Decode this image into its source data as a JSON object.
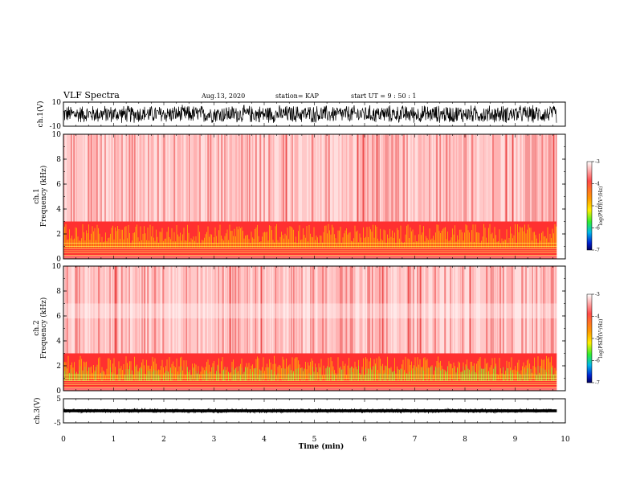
{
  "header": {
    "title": "VLF Spectra",
    "date": "Aug.13, 2020",
    "station": "station= KAP",
    "start": "start  UT  =   9  : 50 : 1"
  },
  "chart_data": [
    {
      "type": "line",
      "panel": "ch1-waveform",
      "ylabel": "ch.1(V)",
      "ylim": [
        -10,
        10
      ],
      "ytick_labels": [
        "10",
        "-10"
      ],
      "xlim": [
        0,
        10
      ],
      "x_end": 9.83,
      "description_level": "dense waveform filling roughly -8 to 8 V"
    },
    {
      "type": "heatmap",
      "panel": "ch1-spectrogram",
      "ylabel": "ch.1\nFrequency (kHz)",
      "ylabel_lines": [
        "ch.1",
        "Frequency  (kHz)"
      ],
      "ylim": [
        0,
        10
      ],
      "ytick_labels": [
        "0",
        "2",
        "4",
        "6",
        "8",
        "10"
      ],
      "xlim": [
        0,
        10
      ],
      "x_end": 9.83,
      "colorbar": {
        "label": "log(PSD)(V²/Hz)",
        "range": [
          -7,
          -3
        ],
        "tick_labels": [
          "-3",
          "-4",
          "-5",
          "-6",
          "-7"
        ]
      }
    },
    {
      "type": "heatmap",
      "panel": "ch2-spectrogram",
      "ylabel": "ch.2\nFrequency (kHz)",
      "ylabel_lines": [
        "ch.2",
        "Frequency  (kHz)"
      ],
      "ylim": [
        0,
        10
      ],
      "ytick_labels": [
        "0",
        "2",
        "4",
        "6",
        "8",
        "10"
      ],
      "xlim": [
        0,
        10
      ],
      "x_end": 9.83,
      "colorbar": {
        "label": "log(PSD)(V²/Hz)",
        "range": [
          -7,
          -3
        ],
        "tick_labels": [
          "-3",
          "-4",
          "-5",
          "-6",
          "-7"
        ]
      }
    },
    {
      "type": "line",
      "panel": "ch3-waveform",
      "ylabel": "ch.3(V)",
      "ylim": [
        -5,
        5
      ],
      "ytick_labels": [
        "5",
        "-5"
      ],
      "xlim": [
        0,
        10
      ],
      "x_end": 9.83,
      "xlabel": "Time  (min)",
      "xtick_labels": [
        "0",
        "1",
        "2",
        "3",
        "4",
        "5",
        "6",
        "7",
        "8",
        "9",
        "10"
      ],
      "description_level": "thin band around 0 V, roughly -0.6 to 0.6 V"
    }
  ]
}
